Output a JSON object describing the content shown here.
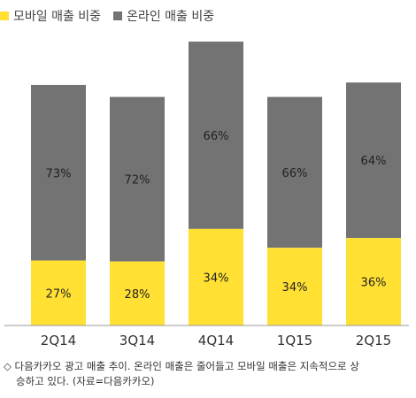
{
  "chart_data": {
    "type": "bar",
    "stacked": true,
    "categories": [
      "2Q14",
      "3Q14",
      "4Q14",
      "1Q15",
      "2Q15"
    ],
    "series": [
      {
        "name": "모바일 매출 비중",
        "color": "#ffe033",
        "values": [
          27,
          28,
          34,
          34,
          36
        ]
      },
      {
        "name": "온라인 매출 비중",
        "color": "#737373",
        "values": [
          73,
          72,
          66,
          66,
          64
        ]
      }
    ],
    "value_labels": {
      "mobile": [
        "27%",
        "28%",
        "34%",
        "34%",
        "36%"
      ],
      "online": [
        "73%",
        "72%",
        "66%",
        "66%",
        "64%"
      ]
    },
    "totals_relative": [
      1.0,
      0.95,
      1.18,
      0.95,
      1.01
    ],
    "legend": "top-left",
    "grid": false
  },
  "caption": {
    "marker": "◇",
    "line1": "다음카카오 광고 매출 추이. 온라인 매출은 줄어들고 모바일 매출은 지속적으로 상",
    "line2": "승하고 있다. (자료=다음카카오)"
  }
}
